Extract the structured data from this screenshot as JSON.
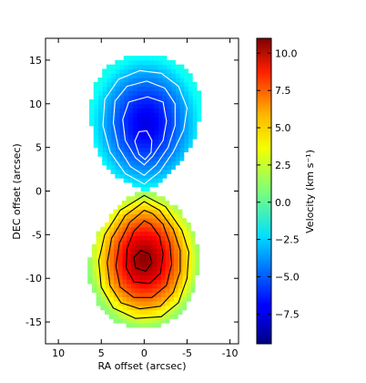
{
  "chart_data": {
    "type": "heatmap",
    "title": "",
    "xlabel": "RA offset (arcsec)",
    "ylabel": "DEC offset (arcsec)",
    "xlim": [
      11.5,
      -11.0
    ],
    "ylim": [
      -17.5,
      17.5
    ],
    "x_ticks": [
      10,
      5,
      0,
      -5,
      -10
    ],
    "x_tick_labels": [
      "10",
      "5",
      "0",
      "-5",
      "-10"
    ],
    "y_ticks": [
      15,
      10,
      5,
      0,
      -5,
      -10,
      -15
    ],
    "y_tick_labels": [
      "15",
      "10",
      "5",
      "0",
      "-5",
      "-10",
      "-15"
    ],
    "colorbar": {
      "label": "Velocity (km s⁻¹)",
      "range": [
        -9.5,
        11.0
      ],
      "ticks": [
        10.0,
        7.5,
        5.0,
        2.5,
        0.0,
        -2.5,
        -5.0,
        -7.5
      ],
      "tick_labels": [
        "10.0",
        "7.5",
        "5.0",
        "2.5",
        "0.0",
        "−2.5",
        "−5.0",
        "−7.5"
      ],
      "colormap": "jet"
    },
    "lobes": [
      {
        "name": "north",
        "outline": [
          [
            0,
            0
          ],
          [
            1.2,
            0.6
          ],
          [
            3,
            1.5
          ],
          [
            4.6,
            3
          ],
          [
            5.6,
            5
          ],
          [
            6.2,
            7.5
          ],
          [
            6.3,
            10
          ],
          [
            5.7,
            12.5
          ],
          [
            4,
            14.6
          ],
          [
            1.5,
            15.6
          ],
          [
            -1,
            15.6
          ],
          [
            -3.5,
            15
          ],
          [
            -5.5,
            13.4
          ],
          [
            -6.6,
            11
          ],
          [
            -6.6,
            8.6
          ],
          [
            -5.8,
            6
          ],
          [
            -4.4,
            3.6
          ],
          [
            -2.4,
            1.4
          ],
          [
            -0.8,
            0.3
          ]
        ],
        "min_velocity": -7.5,
        "edge_velocity": -1.5,
        "contour_color": "white",
        "contours": [
          [
            [
              0,
              0.8
            ],
            [
              2.2,
              2
            ],
            [
              4,
              4.5
            ],
            [
              4.8,
              7.5
            ],
            [
              4.6,
              10.5
            ],
            [
              3,
              12.8
            ],
            [
              0.5,
              13.8
            ],
            [
              -2,
              13.5
            ],
            [
              -4,
              12
            ],
            [
              -5,
              9.5
            ],
            [
              -4.6,
              7
            ],
            [
              -3.4,
              4.5
            ],
            [
              -1.8,
              2.2
            ]
          ],
          [
            [
              0,
              1.8
            ],
            [
              1.6,
              2.8
            ],
            [
              3,
              5
            ],
            [
              3.6,
              7.8
            ],
            [
              3.4,
              10.3
            ],
            [
              2,
              12
            ],
            [
              -0.3,
              12.6
            ],
            [
              -2.4,
              11.8
            ],
            [
              -3.6,
              10
            ],
            [
              -3.6,
              7.5
            ],
            [
              -2.8,
              5
            ],
            [
              -1.4,
              3
            ]
          ],
          [
            [
              0,
              3
            ],
            [
              1,
              3.8
            ],
            [
              2.2,
              5.8
            ],
            [
              2.5,
              8.2
            ],
            [
              1.8,
              10.2
            ],
            [
              -0.4,
              10.8
            ],
            [
              -2.2,
              10.2
            ],
            [
              -2.6,
              8
            ],
            [
              -2.2,
              5.8
            ],
            [
              -1,
              4
            ]
          ],
          [
            [
              -0.1,
              3.6
            ],
            [
              0.6,
              4.2
            ],
            [
              1.1,
              5.7
            ],
            [
              0.6,
              6.8
            ],
            [
              -0.3,
              6.9
            ],
            [
              -0.9,
              5.8
            ],
            [
              -0.8,
              4.4
            ]
          ]
        ]
      },
      {
        "name": "south",
        "outline": [
          [
            0,
            0
          ],
          [
            1.6,
            -0.6
          ],
          [
            3.8,
            -2.6
          ],
          [
            5.6,
            -5.2
          ],
          [
            6.5,
            -8
          ],
          [
            6.4,
            -10.6
          ],
          [
            5.3,
            -13
          ],
          [
            3.6,
            -14.8
          ],
          [
            1.2,
            -15.6
          ],
          [
            -1.6,
            -15.6
          ],
          [
            -4,
            -14.4
          ],
          [
            -5.5,
            -12
          ],
          [
            -6.2,
            -9.5
          ],
          [
            -6.4,
            -7
          ],
          [
            -5.7,
            -4.5
          ],
          [
            -4.1,
            -2.2
          ],
          [
            -1.8,
            -0.4
          ]
        ],
        "max_velocity": 10.8,
        "edge_velocity": 1.0,
        "contour_color": "black",
        "contours": [
          [
            [
              0,
              -0.5
            ],
            [
              2.8,
              -2.2
            ],
            [
              4.6,
              -5
            ],
            [
              5.3,
              -8
            ],
            [
              5,
              -11
            ],
            [
              3.6,
              -13.4
            ],
            [
              1,
              -14.6
            ],
            [
              -2,
              -14.4
            ],
            [
              -4,
              -12.8
            ],
            [
              -5,
              -10
            ],
            [
              -5.2,
              -7
            ],
            [
              -4.4,
              -4.5
            ],
            [
              -2.5,
              -1.8
            ]
          ],
          [
            [
              0,
              -1.2
            ],
            [
              2.2,
              -2.8
            ],
            [
              3.8,
              -5.4
            ],
            [
              4.3,
              -8.2
            ],
            [
              4,
              -10.8
            ],
            [
              2.7,
              -12.8
            ],
            [
              0.5,
              -13.5
            ],
            [
              -1.9,
              -13.2
            ],
            [
              -3.4,
              -11.6
            ],
            [
              -4.2,
              -9.2
            ],
            [
              -4.2,
              -6.8
            ],
            [
              -3.4,
              -4.4
            ],
            [
              -1.8,
              -2.2
            ]
          ],
          [
            [
              0,
              -2.2
            ],
            [
              1.7,
              -3.6
            ],
            [
              2.9,
              -6
            ],
            [
              3.3,
              -8.6
            ],
            [
              2.8,
              -11
            ],
            [
              1.2,
              -12.2
            ],
            [
              -0.9,
              -12.2
            ],
            [
              -2.6,
              -10.8
            ],
            [
              -3.2,
              -8.4
            ],
            [
              -3,
              -6
            ],
            [
              -2.2,
              -3.8
            ],
            [
              -1,
              -2.6
            ]
          ],
          [
            [
              0,
              -3.4
            ],
            [
              1.2,
              -4.6
            ],
            [
              2,
              -6.6
            ],
            [
              2.1,
              -8.8
            ],
            [
              1.2,
              -10.4
            ],
            [
              -0.6,
              -10.6
            ],
            [
              -1.9,
              -9.4
            ],
            [
              -2.2,
              -7.2
            ],
            [
              -1.8,
              -5.2
            ],
            [
              -0.8,
              -3.8
            ]
          ],
          [
            [
              0.4,
              -6.8
            ],
            [
              1.2,
              -7.6
            ],
            [
              1,
              -8.8
            ],
            [
              -0.2,
              -9.2
            ],
            [
              -0.9,
              -8.2
            ],
            [
              -0.6,
              -7.2
            ]
          ]
        ]
      }
    ]
  }
}
